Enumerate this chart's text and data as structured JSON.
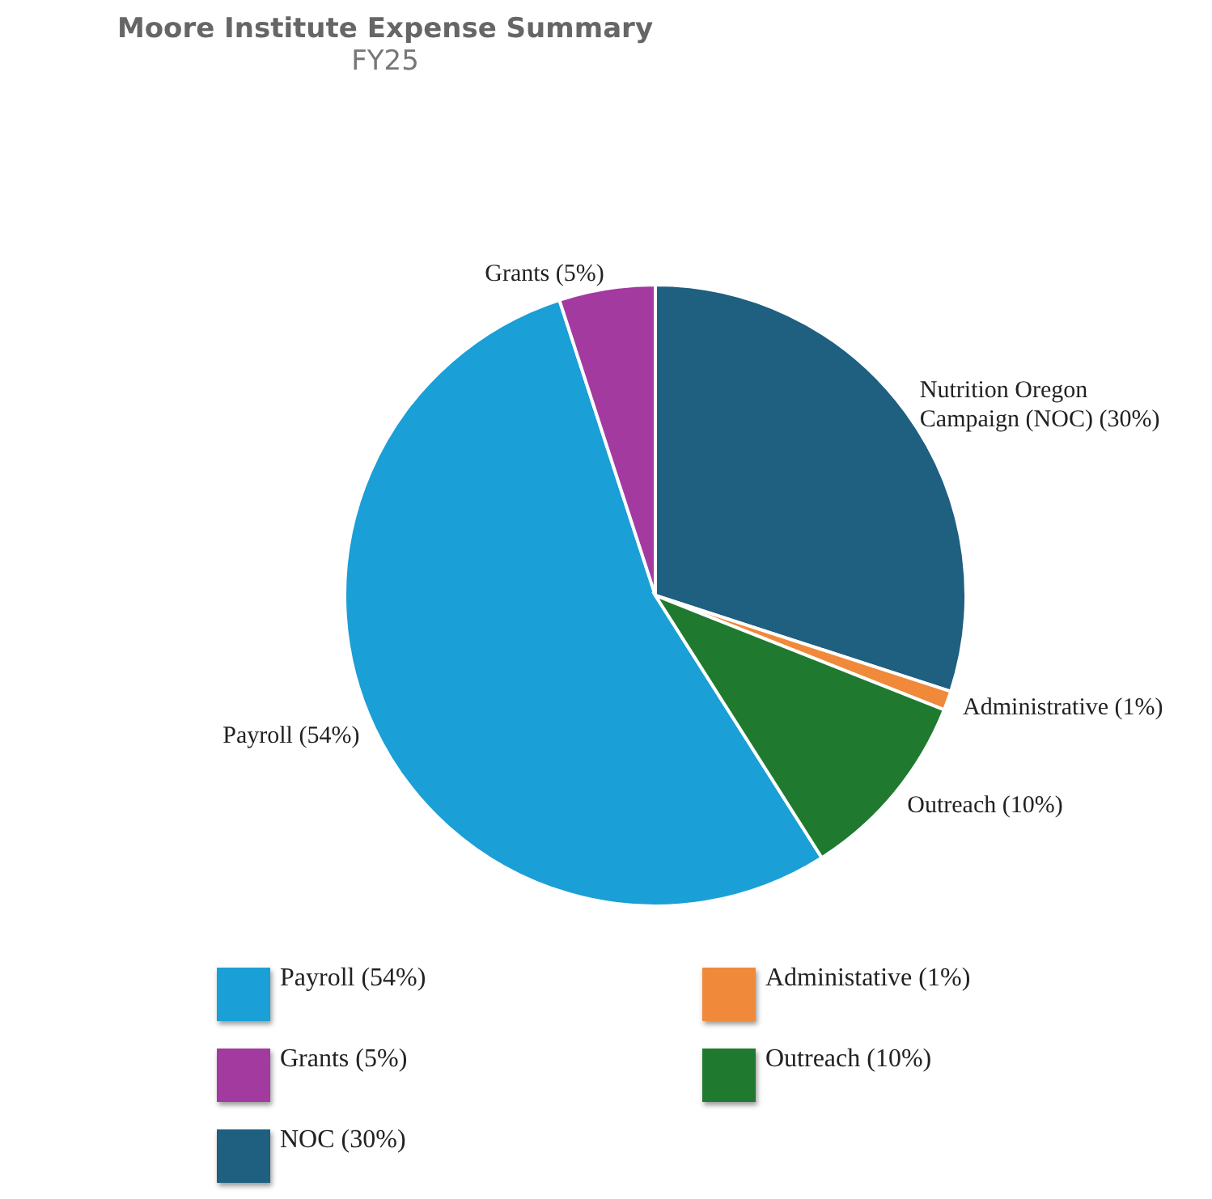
{
  "chart_data": {
    "type": "pie",
    "title": "Moore Institute Expense Summary",
    "subtitle": "FY25",
    "categories": [
      "Payroll (54%)",
      "Grants (5%)",
      "NOC (30%)",
      "Administative (1%)",
      "Outreach (10%)"
    ],
    "values": [
      54,
      5,
      30,
      1,
      10
    ],
    "colors": [
      "#1a9fd6",
      "#a33a9f",
      "#1f5f80",
      "#f0893a",
      "#1f7a2f"
    ],
    "value_labels": [
      "Payroll (54%)",
      "Grants (5%)",
      "Nutrition Oregon Campaign (NOC) (30%)",
      "Administrative (1%)",
      "Outreach (10%)"
    ],
    "legend": "bottom"
  }
}
